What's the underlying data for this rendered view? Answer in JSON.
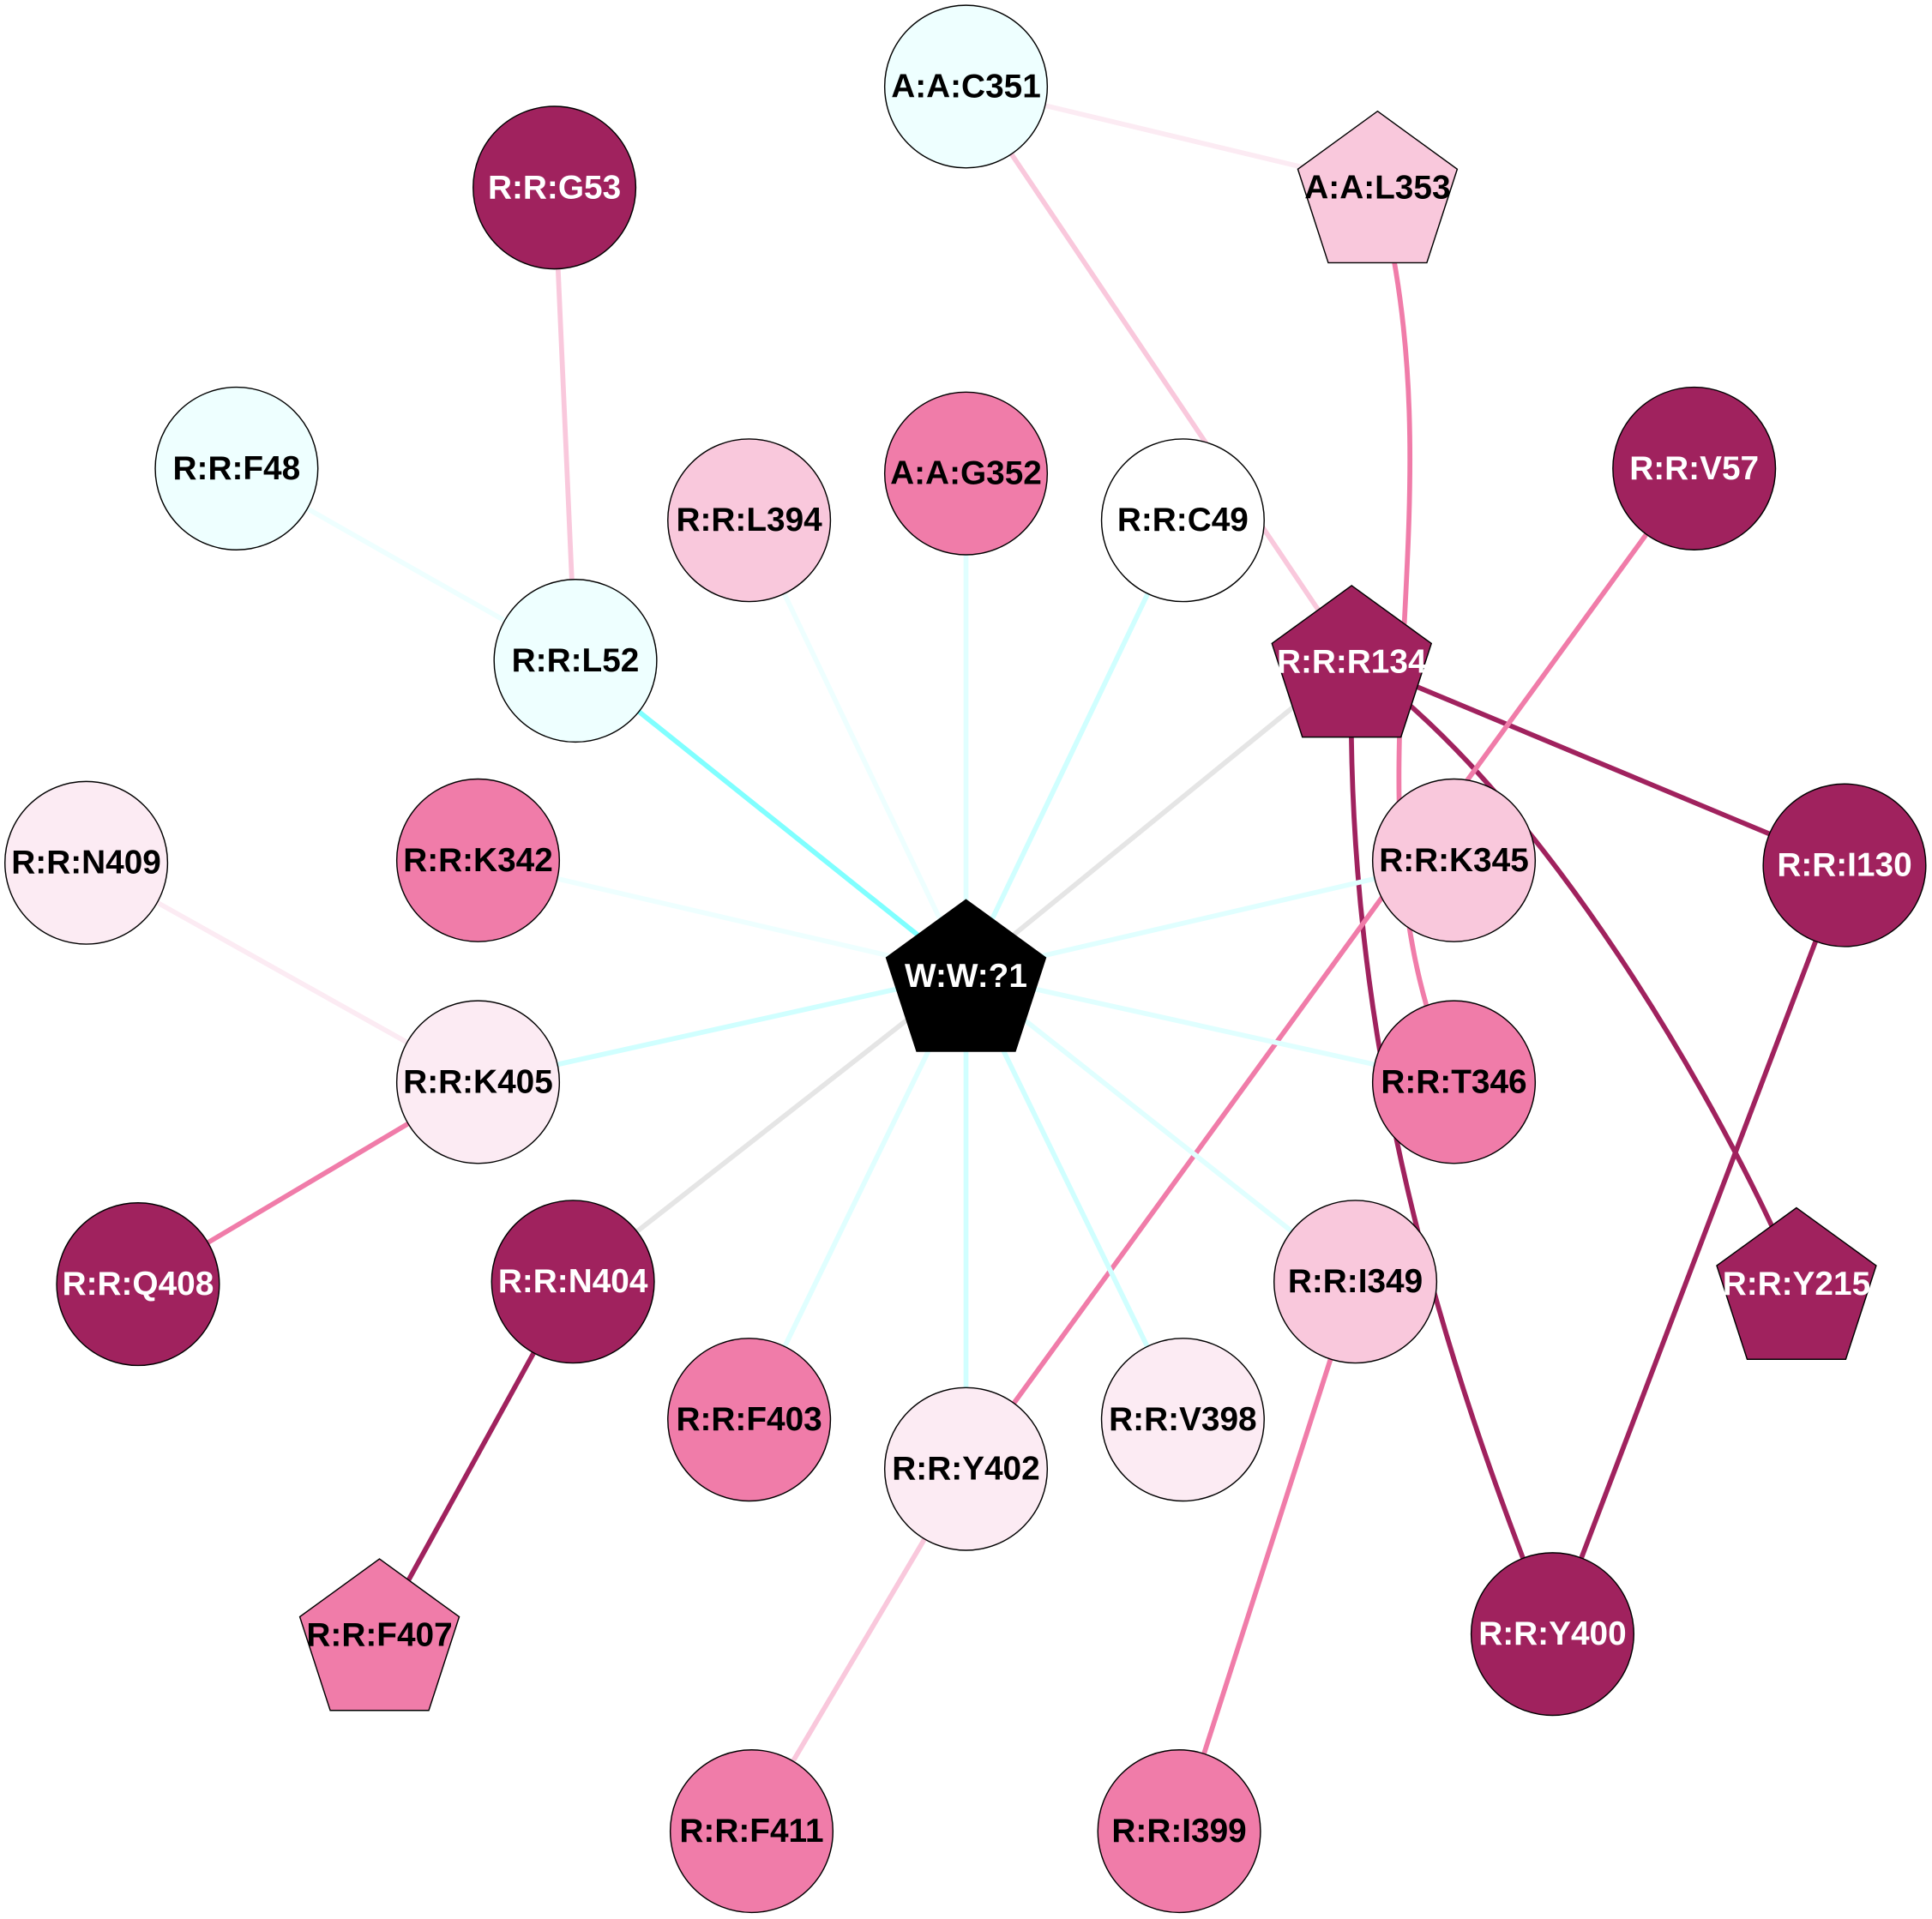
{
  "diagram": {
    "type": "residue-interaction-network",
    "colors": {
      "dark": "#a0225e",
      "medium": "#f07ca9",
      "light": "#f9c8dc",
      "pale": "#fcebf3",
      "cyan_pale": "#eeffff",
      "white": "#ffffff",
      "black": "#000000"
    },
    "nodes": [
      {
        "id": "A:A:C351",
        "shape": "circle",
        "fill": "#eeffff",
        "text": "#000000"
      },
      {
        "id": "A:A:L353",
        "shape": "pentagon",
        "fill": "#f9c8dc",
        "text": "#000000"
      },
      {
        "id": "R:R:G53",
        "shape": "circle",
        "fill": "#a0225e",
        "text": "#ffffff"
      },
      {
        "id": "R:R:F48",
        "shape": "circle",
        "fill": "#eeffff",
        "text": "#000000"
      },
      {
        "id": "R:R:L394",
        "shape": "circle",
        "fill": "#f9c8dc",
        "text": "#000000"
      },
      {
        "id": "A:A:G352",
        "shape": "circle",
        "fill": "#f07ca9",
        "text": "#000000"
      },
      {
        "id": "R:R:C49",
        "shape": "circle",
        "fill": "#ffffff",
        "text": "#000000"
      },
      {
        "id": "R:R:V57",
        "shape": "circle",
        "fill": "#a0225e",
        "text": "#ffffff"
      },
      {
        "id": "R:R:L52",
        "shape": "circle",
        "fill": "#eeffff",
        "text": "#000000"
      },
      {
        "id": "R:R:R134",
        "shape": "pentagon",
        "fill": "#a0225e",
        "text": "#ffffff"
      },
      {
        "id": "R:R:N409",
        "shape": "circle",
        "fill": "#fcebf3",
        "text": "#000000"
      },
      {
        "id": "R:R:K342",
        "shape": "circle",
        "fill": "#f07ca9",
        "text": "#000000"
      },
      {
        "id": "W:W:?1",
        "shape": "pentagon",
        "fill": "#000000",
        "text": "#ffffff"
      },
      {
        "id": "R:R:K345",
        "shape": "circle",
        "fill": "#f9c8dc",
        "text": "#000000"
      },
      {
        "id": "R:R:I130",
        "shape": "circle",
        "fill": "#a0225e",
        "text": "#ffffff"
      },
      {
        "id": "R:R:K405",
        "shape": "circle",
        "fill": "#fcebf3",
        "text": "#000000"
      },
      {
        "id": "R:R:T346",
        "shape": "circle",
        "fill": "#f07ca9",
        "text": "#000000"
      },
      {
        "id": "R:R:Q408",
        "shape": "circle",
        "fill": "#a0225e",
        "text": "#ffffff"
      },
      {
        "id": "R:R:N404",
        "shape": "circle",
        "fill": "#a0225e",
        "text": "#ffffff"
      },
      {
        "id": "R:R:I349",
        "shape": "circle",
        "fill": "#f9c8dc",
        "text": "#000000"
      },
      {
        "id": "R:R:Y215",
        "shape": "pentagon",
        "fill": "#a0225e",
        "text": "#ffffff"
      },
      {
        "id": "R:R:F403",
        "shape": "circle",
        "fill": "#f07ca9",
        "text": "#000000"
      },
      {
        "id": "R:R:Y402",
        "shape": "circle",
        "fill": "#fcebf3",
        "text": "#000000"
      },
      {
        "id": "R:R:V398",
        "shape": "circle",
        "fill": "#fcebf3",
        "text": "#000000"
      },
      {
        "id": "R:R:F407",
        "shape": "pentagon",
        "fill": "#f07ca9",
        "text": "#000000"
      },
      {
        "id": "R:R:Y400",
        "shape": "circle",
        "fill": "#a0225e",
        "text": "#ffffff"
      },
      {
        "id": "R:R:F411",
        "shape": "circle",
        "fill": "#f07ca9",
        "text": "#000000"
      },
      {
        "id": "R:R:I399",
        "shape": "circle",
        "fill": "#f07ca9",
        "text": "#000000"
      }
    ],
    "edges": [
      {
        "source": "A:A:C351",
        "target": "A:A:L353",
        "color": "#fcebf3"
      },
      {
        "source": "A:A:C351",
        "target": "R:R:R134",
        "color": "#f9c8dc"
      },
      {
        "source": "A:A:L353",
        "target": "R:R:T346",
        "color": "#f07ca9",
        "curved": true
      },
      {
        "source": "R:R:G53",
        "target": "R:R:L52",
        "color": "#f9c8dc"
      },
      {
        "source": "R:R:F48",
        "target": "R:R:L52",
        "color": "#eeffff"
      },
      {
        "source": "R:R:L52",
        "target": "W:W:?1",
        "color": "#80ffff"
      },
      {
        "source": "R:R:L394",
        "target": "W:W:?1",
        "color": "#eeffff"
      },
      {
        "source": "A:A:G352",
        "target": "W:W:?1",
        "color": "#e0ffff"
      },
      {
        "source": "R:R:C49",
        "target": "W:W:?1",
        "color": "#d0ffff"
      },
      {
        "source": "R:R:R134",
        "target": "W:W:?1",
        "color": "#e5e5e5"
      },
      {
        "source": "R:R:R134",
        "target": "R:R:I130",
        "color": "#a0225e"
      },
      {
        "source": "R:R:R134",
        "target": "R:R:Y215",
        "color": "#a0225e",
        "curved": true
      },
      {
        "source": "R:R:R134",
        "target": "R:R:Y400",
        "color": "#a0225e",
        "curved": true
      },
      {
        "source": "R:R:V57",
        "target": "R:R:Y402",
        "color": "#f07ca9"
      },
      {
        "source": "R:R:K342",
        "target": "W:W:?1",
        "color": "#eeffff"
      },
      {
        "source": "R:R:K345",
        "target": "W:W:?1",
        "color": "#e0ffff"
      },
      {
        "source": "W:W:?1",
        "target": "R:R:K405",
        "color": "#d0ffff"
      },
      {
        "source": "W:W:?1",
        "target": "R:R:T346",
        "color": "#e0ffff"
      },
      {
        "source": "W:W:?1",
        "target": "R:R:N404",
        "color": "#e5e5e5"
      },
      {
        "source": "W:W:?1",
        "target": "R:R:F403",
        "color": "#e0ffff"
      },
      {
        "source": "W:W:?1",
        "target": "R:R:Y402",
        "color": "#d0ffff"
      },
      {
        "source": "W:W:?1",
        "target": "R:R:V398",
        "color": "#d0ffff"
      },
      {
        "source": "W:W:?1",
        "target": "R:R:I349",
        "color": "#e0ffff"
      },
      {
        "source": "R:R:N409",
        "target": "R:R:K405",
        "color": "#fcebf3"
      },
      {
        "source": "R:R:K405",
        "target": "R:R:Q408",
        "color": "#f07ca9"
      },
      {
        "source": "R:R:N404",
        "target": "R:R:F407",
        "color": "#a0225e"
      },
      {
        "source": "R:R:I130",
        "target": "R:R:Y400",
        "color": "#a0225e"
      },
      {
        "source": "R:R:I349",
        "target": "R:R:I399",
        "color": "#f07ca9"
      },
      {
        "source": "R:R:Y402",
        "target": "R:R:F411",
        "color": "#f9c8dc"
      }
    ]
  }
}
